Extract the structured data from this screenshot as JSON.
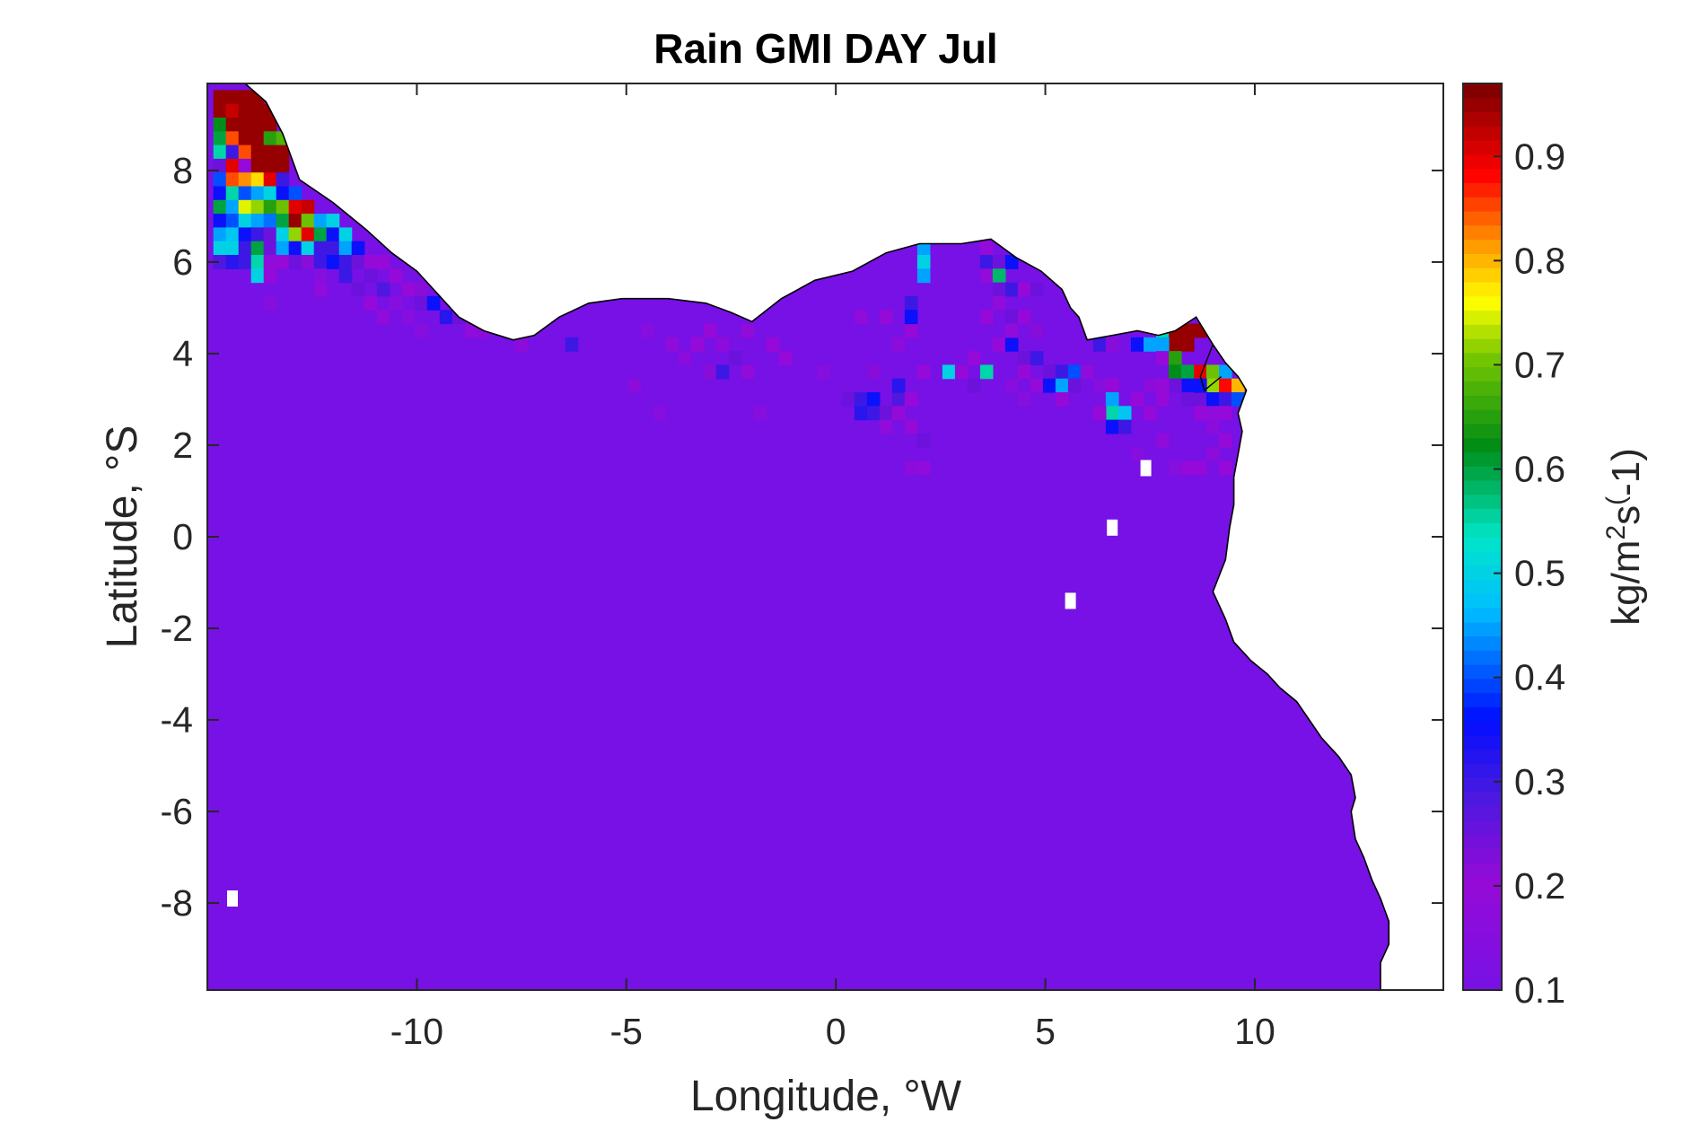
{
  "chart_data": {
    "type": "heatmap",
    "title": "Rain GMI DAY Jul",
    "xlabel": "Longitude, °W",
    "ylabel": "Latitude, °S",
    "xlim": [
      -15,
      14.5
    ],
    "ylim": [
      -9.9,
      9.9
    ],
    "x_ticks": [
      -10,
      -5,
      0,
      5,
      10
    ],
    "x_tick_labels": [
      "-10",
      "-5",
      "0",
      "5",
      "10"
    ],
    "y_ticks": [
      -8,
      -6,
      -4,
      -2,
      0,
      2,
      4,
      6,
      8
    ],
    "y_tick_labels": [
      "-8",
      "-6",
      "-4",
      "-2",
      "0",
      "2",
      "4",
      "6",
      "8"
    ],
    "colorbar": {
      "label": "kg/m²s(-1)",
      "label_parts": [
        "kg/m",
        "2",
        "s",
        "(",
        "-1)"
      ],
      "range": [
        0.1,
        0.97
      ],
      "ticks": [
        0.1,
        0.2,
        0.3,
        0.4,
        0.5,
        0.6,
        0.7,
        0.8,
        0.9
      ],
      "tick_labels": [
        "0.1",
        "0.2",
        "0.3",
        "0.4",
        "0.5",
        "0.6",
        "0.7",
        "0.8",
        "0.9"
      ],
      "colormap": "jet-like (purple-blue-cyan-green-yellow-red-dark red)"
    },
    "background_value": 0.1,
    "grid": false,
    "coastline": true,
    "land_masked": true,
    "ocean_boundary": [
      [
        -15,
        9.9
      ],
      [
        -14.1,
        9.9
      ],
      [
        -13.6,
        9.5
      ],
      [
        -13.2,
        8.8
      ],
      [
        -12.8,
        7.8
      ],
      [
        -12.0,
        7.3
      ],
      [
        -11.2,
        6.7
      ],
      [
        -10.6,
        6.2
      ],
      [
        -10.0,
        5.8
      ],
      [
        -9.5,
        5.3
      ],
      [
        -9.0,
        4.8
      ],
      [
        -8.4,
        4.5
      ],
      [
        -7.7,
        4.3
      ],
      [
        -7.2,
        4.4
      ],
      [
        -6.6,
        4.8
      ],
      [
        -5.9,
        5.1
      ],
      [
        -5.1,
        5.2
      ],
      [
        -4.0,
        5.2
      ],
      [
        -3.1,
        5.1
      ],
      [
        -2.5,
        4.9
      ],
      [
        -2.0,
        4.7
      ],
      [
        -1.3,
        5.2
      ],
      [
        -0.5,
        5.6
      ],
      [
        0.4,
        5.8
      ],
      [
        1.2,
        6.2
      ],
      [
        2.0,
        6.4
      ],
      [
        3.0,
        6.4
      ],
      [
        3.7,
        6.5
      ],
      [
        4.3,
        6.1
      ],
      [
        4.9,
        5.8
      ],
      [
        5.4,
        5.4
      ],
      [
        5.6,
        5.0
      ],
      [
        5.8,
        4.8
      ],
      [
        6.0,
        4.3
      ],
      [
        6.6,
        4.4
      ],
      [
        7.2,
        4.5
      ],
      [
        7.7,
        4.4
      ],
      [
        8.1,
        4.5
      ],
      [
        8.6,
        4.8
      ],
      [
        9.0,
        4.2
      ],
      [
        9.3,
        3.8
      ],
      [
        9.6,
        3.5
      ],
      [
        9.8,
        3.2
      ],
      [
        9.6,
        2.7
      ],
      [
        9.7,
        2.3
      ],
      [
        9.6,
        1.8
      ],
      [
        9.5,
        1.3
      ],
      [
        9.5,
        0.7
      ],
      [
        9.4,
        0.2
      ],
      [
        9.3,
        -0.5
      ],
      [
        9.0,
        -1.2
      ],
      [
        9.3,
        -1.8
      ],
      [
        9.5,
        -2.3
      ],
      [
        9.9,
        -2.7
      ],
      [
        10.3,
        -3.0
      ],
      [
        10.6,
        -3.3
      ],
      [
        11.0,
        -3.6
      ],
      [
        11.3,
        -4.0
      ],
      [
        11.6,
        -4.4
      ],
      [
        12.0,
        -4.8
      ],
      [
        12.3,
        -5.2
      ],
      [
        12.4,
        -5.7
      ],
      [
        12.3,
        -6.0
      ],
      [
        12.4,
        -6.6
      ],
      [
        12.6,
        -7.0
      ],
      [
        12.8,
        -7.5
      ],
      [
        13.0,
        -7.9
      ],
      [
        13.2,
        -8.4
      ],
      [
        13.2,
        -8.9
      ],
      [
        13.0,
        -9.3
      ],
      [
        13.0,
        -9.9
      ],
      [
        -15,
        -9.9
      ]
    ],
    "coastline_extra": [
      [
        9.0,
        4.2
      ],
      [
        8.7,
        3.5
      ],
      [
        8.8,
        3.2
      ],
      [
        9.2,
        3.5
      ]
    ],
    "cells": [
      [
        -14.7,
        9.6,
        0.95
      ],
      [
        -14.4,
        9.6,
        0.95
      ],
      [
        -14.1,
        9.6,
        0.95
      ],
      [
        -13.8,
        9.6,
        0.95
      ],
      [
        -14.7,
        9.3,
        0.95
      ],
      [
        -14.4,
        9.3,
        0.92
      ],
      [
        -14.1,
        9.3,
        0.95
      ],
      [
        -13.8,
        9.3,
        0.95
      ],
      [
        -13.5,
        9.3,
        0.95
      ],
      [
        -14.7,
        9.0,
        0.62
      ],
      [
        -14.4,
        9.0,
        0.95
      ],
      [
        -14.1,
        9.0,
        0.95
      ],
      [
        -13.8,
        9.0,
        0.95
      ],
      [
        -13.5,
        9.0,
        0.95
      ],
      [
        -14.7,
        8.7,
        0.6
      ],
      [
        -14.4,
        8.7,
        0.85
      ],
      [
        -14.1,
        8.7,
        0.95
      ],
      [
        -13.8,
        8.7,
        0.95
      ],
      [
        -13.5,
        8.7,
        0.65
      ],
      [
        -13.2,
        8.7,
        0.68
      ],
      [
        -14.7,
        8.4,
        0.55
      ],
      [
        -14.4,
        8.4,
        0.3
      ],
      [
        -14.1,
        8.4,
        0.85
      ],
      [
        -13.8,
        8.4,
        0.95
      ],
      [
        -13.5,
        8.4,
        0.95
      ],
      [
        -13.2,
        8.4,
        0.95
      ],
      [
        -14.7,
        8.1,
        0.25
      ],
      [
        -14.4,
        8.1,
        0.9
      ],
      [
        -14.1,
        8.1,
        0.2
      ],
      [
        -13.8,
        8.1,
        0.95
      ],
      [
        -13.5,
        8.1,
        0.95
      ],
      [
        -13.2,
        8.1,
        0.95
      ],
      [
        -14.7,
        7.8,
        0.4
      ],
      [
        -14.4,
        7.8,
        0.85
      ],
      [
        -14.1,
        7.8,
        0.82
      ],
      [
        -13.8,
        7.8,
        0.78
      ],
      [
        -13.5,
        7.8,
        0.9
      ],
      [
        -13.2,
        7.8,
        0.3
      ],
      [
        -14.7,
        7.5,
        0.35
      ],
      [
        -14.4,
        7.5,
        0.55
      ],
      [
        -14.1,
        7.5,
        0.4
      ],
      [
        -13.8,
        7.5,
        0.45
      ],
      [
        -13.5,
        7.5,
        0.5
      ],
      [
        -13.2,
        7.5,
        0.35
      ],
      [
        -12.9,
        7.5,
        0.4
      ],
      [
        -14.7,
        7.2,
        0.6
      ],
      [
        -14.4,
        7.2,
        0.45
      ],
      [
        -14.1,
        7.2,
        0.75
      ],
      [
        -13.8,
        7.2,
        0.72
      ],
      [
        -13.5,
        7.2,
        0.65
      ],
      [
        -13.2,
        7.2,
        0.7
      ],
      [
        -12.9,
        7.2,
        0.9
      ],
      [
        -12.6,
        7.2,
        0.92
      ],
      [
        -14.7,
        6.9,
        0.35
      ],
      [
        -14.4,
        6.9,
        0.4
      ],
      [
        -14.1,
        6.9,
        0.5
      ],
      [
        -13.8,
        6.9,
        0.45
      ],
      [
        -13.5,
        6.9,
        0.42
      ],
      [
        -13.2,
        6.9,
        0.6
      ],
      [
        -12.9,
        6.9,
        0.95
      ],
      [
        -12.6,
        6.9,
        0.7
      ],
      [
        -12.3,
        6.9,
        0.45
      ],
      [
        -12.0,
        6.9,
        0.5
      ],
      [
        -14.7,
        6.6,
        0.45
      ],
      [
        -14.4,
        6.6,
        0.48
      ],
      [
        -14.1,
        6.6,
        0.35
      ],
      [
        -13.8,
        6.6,
        0.3
      ],
      [
        -13.5,
        6.6,
        0.25
      ],
      [
        -13.2,
        6.6,
        0.5
      ],
      [
        -12.9,
        6.6,
        0.72
      ],
      [
        -12.6,
        6.6,
        0.9
      ],
      [
        -12.3,
        6.6,
        0.6
      ],
      [
        -12.0,
        6.6,
        0.35
      ],
      [
        -11.7,
        6.6,
        0.5
      ],
      [
        -14.7,
        6.3,
        0.5
      ],
      [
        -14.4,
        6.3,
        0.5
      ],
      [
        -14.1,
        6.3,
        0.3
      ],
      [
        -13.8,
        6.3,
        0.6
      ],
      [
        -13.5,
        6.3,
        0.25
      ],
      [
        -13.2,
        6.3,
        0.45
      ],
      [
        -12.9,
        6.3,
        0.35
      ],
      [
        -12.6,
        6.3,
        0.5
      ],
      [
        -12.3,
        6.3,
        0.3
      ],
      [
        -12.0,
        6.3,
        0.3
      ],
      [
        -11.7,
        6.3,
        0.45
      ],
      [
        -11.4,
        6.3,
        0.35
      ],
      [
        -14.7,
        6.0,
        0.28
      ],
      [
        -14.4,
        6.0,
        0.32
      ],
      [
        -14.1,
        6.0,
        0.3
      ],
      [
        -13.8,
        6.0,
        0.55
      ],
      [
        -13.5,
        6.0,
        0.18
      ],
      [
        -13.2,
        6.0,
        0.2
      ],
      [
        -12.9,
        6.0,
        0.25
      ],
      [
        -12.6,
        6.0,
        0.22
      ],
      [
        -12.3,
        6.0,
        0.3
      ],
      [
        -12.0,
        6.0,
        0.35
      ],
      [
        -11.7,
        6.0,
        0.3
      ],
      [
        -11.4,
        6.0,
        0.25
      ],
      [
        -11.1,
        6.0,
        0.2
      ],
      [
        -10.8,
        6.0,
        0.2
      ],
      [
        -13.8,
        5.7,
        0.5
      ],
      [
        -13.5,
        5.7,
        0.2
      ],
      [
        -12.3,
        5.7,
        0.15
      ],
      [
        -11.7,
        5.7,
        0.3
      ],
      [
        -11.1,
        5.7,
        0.25
      ],
      [
        -10.5,
        5.7,
        0.2
      ],
      [
        -12.3,
        5.4,
        0.18
      ],
      [
        -11.4,
        5.4,
        0.25
      ],
      [
        -10.8,
        5.4,
        0.28
      ],
      [
        -10.2,
        5.4,
        0.2
      ],
      [
        -9.9,
        5.4,
        0.22
      ],
      [
        -13.5,
        5.1,
        0.15
      ],
      [
        -11.1,
        5.1,
        0.2
      ],
      [
        -10.5,
        5.1,
        0.15
      ],
      [
        -9.9,
        5.1,
        0.25
      ],
      [
        -9.6,
        5.1,
        0.35
      ],
      [
        -10.8,
        4.8,
        0.18
      ],
      [
        -10.2,
        4.8,
        0.15
      ],
      [
        -9.3,
        4.8,
        0.32
      ],
      [
        -9.0,
        4.8,
        0.25
      ],
      [
        -8.7,
        4.5,
        0.18
      ],
      [
        -8.4,
        4.5,
        0.17
      ],
      [
        -9.9,
        4.5,
        0.15
      ],
      [
        -6.3,
        4.2,
        0.3
      ],
      [
        -7.5,
        4.2,
        0.17
      ],
      [
        -3.9,
        4.2,
        0.18
      ],
      [
        -3.3,
        4.2,
        0.2
      ],
      [
        -2.7,
        4.2,
        0.17
      ],
      [
        -1.5,
        4.2,
        0.2
      ],
      [
        -4.5,
        4.5,
        0.15
      ],
      [
        -3.0,
        4.5,
        0.2
      ],
      [
        -2.1,
        4.5,
        0.18
      ],
      [
        -3.6,
        3.9,
        0.17
      ],
      [
        -2.4,
        3.9,
        0.25
      ],
      [
        -1.2,
        3.9,
        0.2
      ],
      [
        -3.0,
        3.6,
        0.22
      ],
      [
        -2.7,
        3.6,
        0.3
      ],
      [
        -2.1,
        3.6,
        0.18
      ],
      [
        -0.3,
        3.6,
        0.15
      ],
      [
        -4.2,
        2.7,
        0.15
      ],
      [
        -1.8,
        2.7,
        0.15
      ],
      [
        -4.8,
        3.3,
        0.17
      ],
      [
        0.6,
        4.8,
        0.18
      ],
      [
        1.2,
        4.8,
        0.2
      ],
      [
        1.8,
        4.5,
        0.2
      ],
      [
        1.5,
        4.2,
        0.17
      ],
      [
        0.9,
        3.6,
        0.22
      ],
      [
        0.3,
        3.0,
        0.25
      ],
      [
        0.6,
        3.0,
        0.3
      ],
      [
        0.9,
        3.0,
        0.35
      ],
      [
        0.6,
        2.7,
        0.32
      ],
      [
        0.9,
        2.7,
        0.3
      ],
      [
        1.2,
        2.7,
        0.25
      ],
      [
        1.5,
        3.0,
        0.28
      ],
      [
        1.5,
        2.7,
        0.2
      ],
      [
        1.2,
        2.4,
        0.18
      ],
      [
        1.8,
        2.4,
        0.2
      ],
      [
        2.1,
        2.1,
        0.25
      ],
      [
        1.8,
        1.5,
        0.17
      ],
      [
        2.1,
        1.5,
        0.18
      ],
      [
        1.5,
        3.3,
        0.32
      ],
      [
        1.8,
        3.0,
        0.2
      ],
      [
        2.1,
        3.6,
        0.2
      ],
      [
        2.1,
        6.3,
        0.45
      ],
      [
        2.1,
        6.0,
        0.5
      ],
      [
        2.1,
        5.7,
        0.45
      ],
      [
        1.8,
        5.1,
        0.3
      ],
      [
        1.8,
        4.8,
        0.35
      ],
      [
        2.7,
        3.6,
        0.5
      ],
      [
        3.0,
        3.6,
        0.2
      ],
      [
        3.3,
        3.3,
        0.25
      ],
      [
        3.6,
        3.6,
        0.55
      ],
      [
        3.3,
        3.9,
        0.2
      ],
      [
        3.6,
        6.3,
        0.2
      ],
      [
        3.6,
        6.0,
        0.3
      ],
      [
        3.6,
        5.7,
        0.18
      ],
      [
        3.9,
        6.0,
        0.25
      ],
      [
        3.9,
        5.7,
        0.58
      ],
      [
        3.9,
        5.4,
        0.25
      ],
      [
        4.2,
        6.0,
        0.35
      ],
      [
        4.2,
        5.4,
        0.3
      ],
      [
        4.5,
        5.4,
        0.2
      ],
      [
        4.8,
        5.4,
        0.25
      ],
      [
        3.9,
        5.1,
        0.18
      ],
      [
        4.2,
        4.8,
        0.25
      ],
      [
        4.5,
        4.8,
        0.2
      ],
      [
        3.6,
        4.8,
        0.2
      ],
      [
        4.8,
        4.5,
        0.22
      ],
      [
        3.9,
        4.2,
        0.2
      ],
      [
        4.2,
        4.2,
        0.35
      ],
      [
        4.5,
        3.9,
        0.25
      ],
      [
        4.8,
        3.9,
        0.3
      ],
      [
        5.1,
        3.6,
        0.25
      ],
      [
        4.5,
        3.6,
        0.2
      ],
      [
        4.2,
        3.3,
        0.15
      ],
      [
        4.8,
        3.3,
        0.2
      ],
      [
        5.1,
        3.3,
        0.35
      ],
      [
        5.4,
        3.6,
        0.3
      ],
      [
        5.4,
        3.3,
        0.45
      ],
      [
        5.7,
        3.6,
        0.4
      ],
      [
        5.7,
        3.3,
        0.25
      ],
      [
        5.4,
        3.0,
        0.2
      ],
      [
        4.5,
        3.0,
        0.15
      ],
      [
        4.2,
        4.5,
        0.18
      ],
      [
        6.3,
        4.2,
        0.3
      ],
      [
        6.6,
        4.2,
        0.22
      ],
      [
        6.0,
        3.6,
        0.18
      ],
      [
        6.3,
        3.3,
        0.15
      ],
      [
        6.6,
        3.3,
        0.2
      ],
      [
        6.6,
        3.0,
        0.45
      ],
      [
        6.6,
        2.7,
        0.55
      ],
      [
        6.9,
        2.7,
        0.48
      ],
      [
        6.6,
        2.4,
        0.35
      ],
      [
        6.9,
        2.4,
        0.3
      ],
      [
        6.3,
        2.7,
        0.2
      ],
      [
        7.2,
        3.0,
        0.2
      ],
      [
        7.5,
        3.3,
        0.17
      ],
      [
        7.5,
        2.7,
        0.2
      ],
      [
        7.2,
        1.8,
        0.15
      ],
      [
        7.2,
        4.2,
        0.35
      ],
      [
        7.5,
        4.2,
        0.45
      ],
      [
        7.8,
        4.5,
        0.55
      ],
      [
        8.1,
        4.5,
        0.95
      ],
      [
        8.4,
        4.5,
        0.95
      ],
      [
        8.7,
        4.5,
        0.95
      ],
      [
        8.1,
        4.2,
        0.95
      ],
      [
        8.4,
        4.2,
        0.95
      ],
      [
        7.8,
        4.2,
        0.45
      ],
      [
        7.8,
        3.9,
        0.2
      ],
      [
        8.1,
        3.9,
        0.65
      ],
      [
        8.1,
        3.6,
        0.62
      ],
      [
        8.4,
        3.6,
        0.6
      ],
      [
        8.4,
        3.3,
        0.35
      ],
      [
        8.1,
        3.3,
        0.25
      ],
      [
        7.8,
        3.3,
        0.2
      ],
      [
        7.8,
        3.0,
        0.2
      ],
      [
        8.4,
        3.0,
        0.25
      ],
      [
        8.7,
        3.0,
        0.25
      ],
      [
        8.7,
        3.6,
        0.9
      ],
      [
        9.0,
        3.6,
        0.7
      ],
      [
        9.3,
        3.6,
        0.45
      ],
      [
        9.0,
        3.3,
        0.72
      ],
      [
        9.3,
        3.3,
        0.88
      ],
      [
        9.6,
        3.3,
        0.8
      ],
      [
        8.7,
        3.3,
        0.35
      ],
      [
        9.0,
        3.0,
        0.35
      ],
      [
        9.3,
        3.0,
        0.3
      ],
      [
        9.6,
        3.0,
        0.4
      ],
      [
        8.7,
        2.7,
        0.2
      ],
      [
        9.0,
        2.7,
        0.18
      ],
      [
        9.3,
        2.7,
        0.2
      ],
      [
        9.0,
        2.4,
        0.17
      ],
      [
        9.3,
        2.1,
        0.2
      ],
      [
        8.4,
        1.5,
        0.2
      ],
      [
        8.7,
        1.5,
        0.2
      ],
      [
        8.1,
        1.5,
        0.15
      ],
      [
        7.8,
        2.1,
        0.18
      ],
      [
        9.0,
        1.8,
        0.17
      ],
      [
        9.3,
        1.5,
        0.2
      ],
      [
        9.3,
        4.2,
        0.35
      ]
    ],
    "white_patches": [
      [
        -14.4,
        -7.9
      ],
      [
        5.6,
        -1.4
      ],
      [
        6.6,
        0.2
      ],
      [
        7.4,
        1.5
      ]
    ]
  }
}
